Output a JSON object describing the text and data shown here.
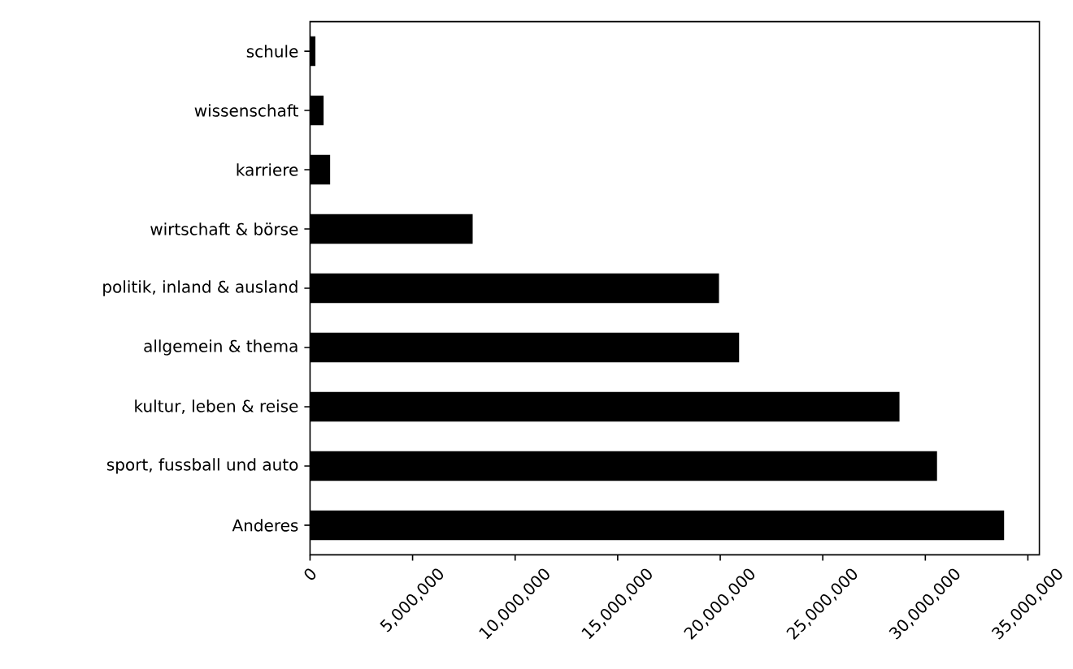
{
  "chart_data": {
    "type": "bar",
    "orientation": "horizontal",
    "categories": [
      "schule",
      "wissenschaft",
      "karriere",
      "wirtschaft & börse",
      "politik, inland & ausland",
      "allgemein & thema",
      "kultur, leben & reise",
      "sport, fussball und auto",
      "Anderes"
    ],
    "values": [
      260000,
      660000,
      980000,
      7930000,
      19940000,
      20920000,
      28740000,
      30570000,
      33840000
    ],
    "color": "#000000",
    "xlim": [
      0,
      35560000
    ],
    "xticks": [
      0,
      {
        "value": 5000000,
        "label": "5,000,000"
      },
      {
        "value": 10000000,
        "label": "10,000,000"
      },
      {
        "value": 15000000,
        "label": "15,000,000"
      },
      {
        "value": 20000000,
        "label": "20,000,000"
      },
      {
        "value": 25000000,
        "label": "25,000,000"
      },
      {
        "value": 30000000,
        "label": "30,000,000"
      },
      {
        "value": 35000000,
        "label": "35,000,000"
      }
    ],
    "grid": false
  }
}
